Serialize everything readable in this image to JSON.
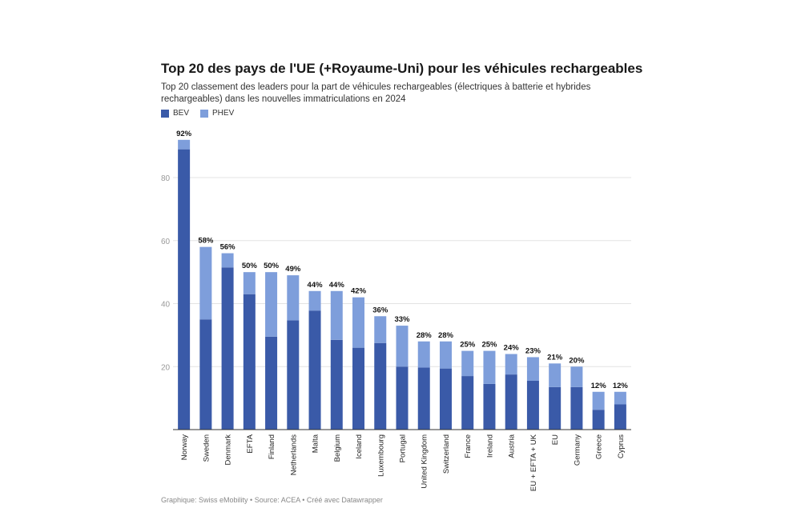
{
  "chart_data": {
    "type": "bar",
    "stacked": true,
    "title": "Top 20 des pays de l'UE (+Royaume-Uni) pour les véhicules rechargeables",
    "subtitle": "Top 20 classement des leaders pour la part de véhicules rechargeables (électriques à batterie et hybrides rechargeables) dans les nouvelles immatriculations en 2024",
    "categories": [
      "Norway",
      "Sweden",
      "Denmark",
      "EFTA",
      "Finland",
      "Netherlands",
      "Malta",
      "Belgium",
      "Iceland",
      "Luxembourg",
      "Portugal",
      "United Kingdom",
      "Switzerland",
      "France",
      "Ireland",
      "Austria",
      "EU + EFTA + UK",
      "EU",
      "Germany",
      "Greece",
      "Cyprus"
    ],
    "series": [
      {
        "name": "BEV",
        "color": "#3a5aa8",
        "values": [
          89,
          35,
          51.5,
          43,
          29.5,
          34.7,
          37.8,
          28.5,
          26,
          27.5,
          20,
          19.7,
          19.4,
          17,
          14.5,
          17.5,
          15.5,
          13.5,
          13.5,
          6.3,
          8
        ]
      },
      {
        "name": "PHEV",
        "color": "#7e9edb",
        "values": [
          3,
          23,
          4.5,
          7,
          20.5,
          14.3,
          6.2,
          15.5,
          16,
          8.5,
          13,
          8.3,
          8.6,
          8,
          10.5,
          6.5,
          7.5,
          7.5,
          6.5,
          5.7,
          4
        ]
      }
    ],
    "totals_labels": [
      "92%",
      "58%",
      "56%",
      "50%",
      "50%",
      "49%",
      "44%",
      "44%",
      "42%",
      "36%",
      "33%",
      "28%",
      "28%",
      "25%",
      "25%",
      "24%",
      "23%",
      "21%",
      "20%",
      "12%",
      "12%"
    ],
    "yticks": [
      "20",
      "40",
      "60",
      "80"
    ],
    "ylim": [
      0,
      95
    ],
    "grid": true,
    "legend_position": "top-left"
  },
  "footer": "Graphique: Swiss eMobility • Source: ACEA • Créé avec Datawrapper"
}
